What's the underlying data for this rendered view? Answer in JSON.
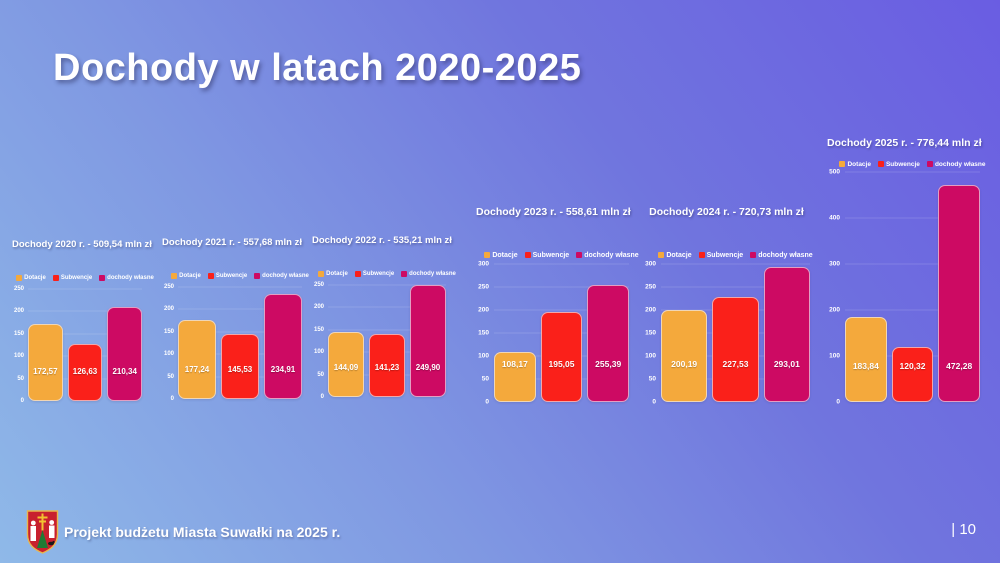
{
  "slide": {
    "title": "Dochody w latach 2020-2025",
    "footer": "Projekt budżetu Miasta Suwałki na 2025 r.",
    "page_number": "| 10",
    "logo": "suwalki-coat-of-arms"
  },
  "colors": {
    "dotacje": "#F4A93C",
    "subwencje": "#FA201A",
    "dochody_wlasne": "#CD0A63",
    "background_start": "#8FB9E8",
    "background_end": "#6A5DE2",
    "text": "#FFFFFF"
  },
  "series_ids": [
    "dotacje",
    "subwencje",
    "dochody-wlasne"
  ],
  "series_colors": [
    "#F4A93C",
    "#FA201A",
    "#CD0A63"
  ],
  "chart_data": [
    {
      "type": "bar",
      "title": "Dochody 2020 r. - 509,54 mln zł",
      "categories": [
        "Dotacje",
        "Subwencje",
        "dochody własne"
      ],
      "values": [
        172.57,
        126.63,
        210.34
      ],
      "labels": [
        "172,57",
        "126,63",
        "210,34"
      ],
      "ylim": [
        0,
        250
      ],
      "yticks": [
        0,
        50,
        100,
        150,
        200,
        250
      ],
      "grid": true,
      "legend_position": "top"
    },
    {
      "type": "bar",
      "title": "Dochody 2021 r. - 557,68 mln zł",
      "categories": [
        "Dotacje",
        "Subwencje",
        "dochody własne"
      ],
      "values": [
        177.24,
        145.53,
        234.91
      ],
      "labels": [
        "177,24",
        "145,53",
        "234,91"
      ],
      "ylim": [
        0,
        250
      ],
      "yticks": [
        0,
        50,
        100,
        150,
        200,
        250
      ],
      "grid": true,
      "legend_position": "top"
    },
    {
      "type": "bar",
      "title": "Dochody 2022 r. - 535,21 mln zł",
      "categories": [
        "Dotacje",
        "Subwencje",
        "dochody własne"
      ],
      "values": [
        144.09,
        141.23,
        249.9
      ],
      "labels": [
        "144,09",
        "141,23",
        "249,90"
      ],
      "ylim": [
        0,
        250
      ],
      "yticks": [
        0,
        50,
        100,
        150,
        200,
        250
      ],
      "grid": true,
      "legend_position": "top"
    },
    {
      "type": "bar",
      "title": "Dochody 2023 r. - 558,61 mln zł",
      "categories": [
        "Dotacje",
        "Subwencje",
        "dochody własne"
      ],
      "values": [
        108.17,
        195.05,
        255.39
      ],
      "labels": [
        "108,17",
        "195,05",
        "255,39"
      ],
      "ylim": [
        0,
        300
      ],
      "yticks": [
        0,
        50,
        100,
        150,
        200,
        250,
        300
      ],
      "grid": true,
      "legend_position": "top"
    },
    {
      "type": "bar",
      "title": "Dochody 2024 r. - 720,73 mln zł",
      "categories": [
        "Dotacje",
        "Subwencje",
        "dochody własne"
      ],
      "values": [
        200.19,
        227.53,
        293.01
      ],
      "labels": [
        "200,19",
        "227,53",
        "293,01"
      ],
      "ylim": [
        0,
        300
      ],
      "yticks": [
        0,
        50,
        100,
        150,
        200,
        250,
        300
      ],
      "grid": true,
      "legend_position": "top"
    },
    {
      "type": "bar",
      "title": "Dochody 2025 r. - 776,44 mln zł",
      "categories": [
        "Dotacje",
        "Subwencje",
        "dochody własne"
      ],
      "values": [
        183.84,
        120.32,
        472.28
      ],
      "labels": [
        "183,84",
        "120,32",
        "472,28"
      ],
      "ylim": [
        0,
        500
      ],
      "yticks": [
        0,
        100,
        200,
        300,
        400,
        500
      ],
      "grid": true,
      "legend_position": "top"
    }
  ]
}
